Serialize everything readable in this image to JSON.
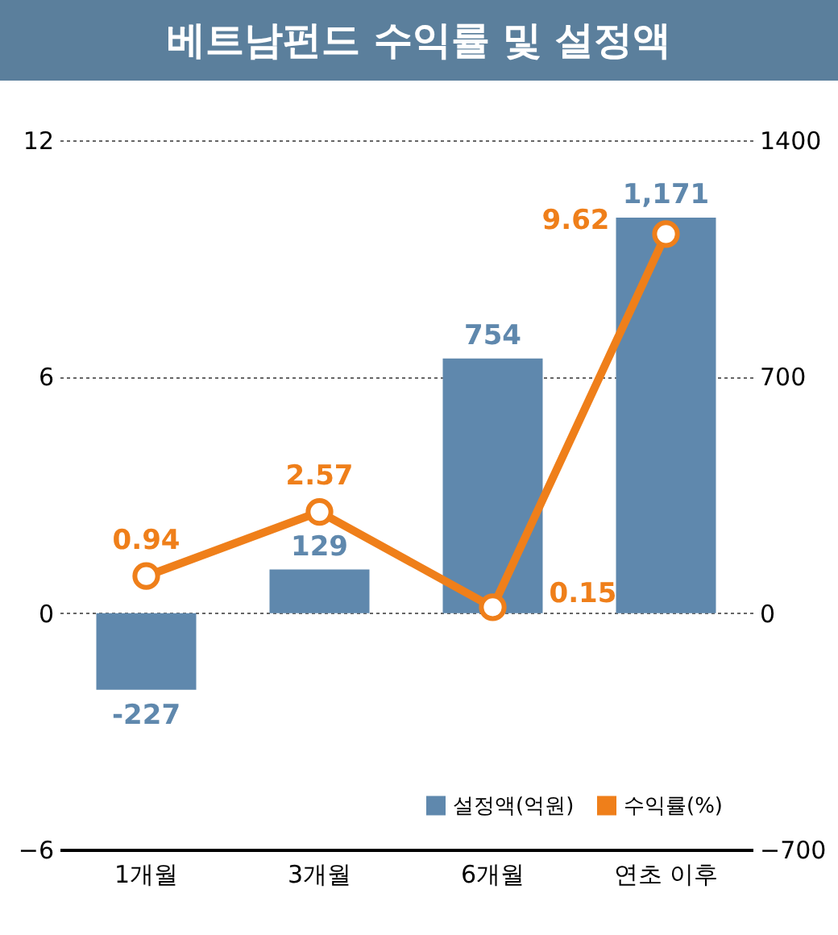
{
  "chart_data": {
    "type": "bar",
    "title": "베트남펀드 수익률 및 설정액",
    "categories": [
      "1개월",
      "3개월",
      "6개월",
      "연초 이후"
    ],
    "series": [
      {
        "name": "설정액(억원)",
        "axis": "y2",
        "color": "#5f88ad",
        "values": [
          -227,
          129,
          754,
          1171
        ],
        "value_labels": [
          "-227",
          "129",
          "754",
          "1,171"
        ]
      },
      {
        "name": "수익률(%)",
        "type": "line",
        "axis": "y",
        "color": "#ef7f1a",
        "values": [
          0.94,
          2.57,
          0.15,
          9.62
        ],
        "value_labels": [
          "0.94",
          "2.57",
          "0.15",
          "9.62"
        ]
      }
    ],
    "ylim": [
      -6,
      12
    ],
    "yticks": [
      -6,
      0,
      6,
      12
    ],
    "y2lim": [
      -700,
      1400
    ],
    "y2ticks": [
      -700,
      0,
      700,
      1400
    ],
    "grid": "y",
    "legend": "bottom right",
    "marker": "circle"
  }
}
